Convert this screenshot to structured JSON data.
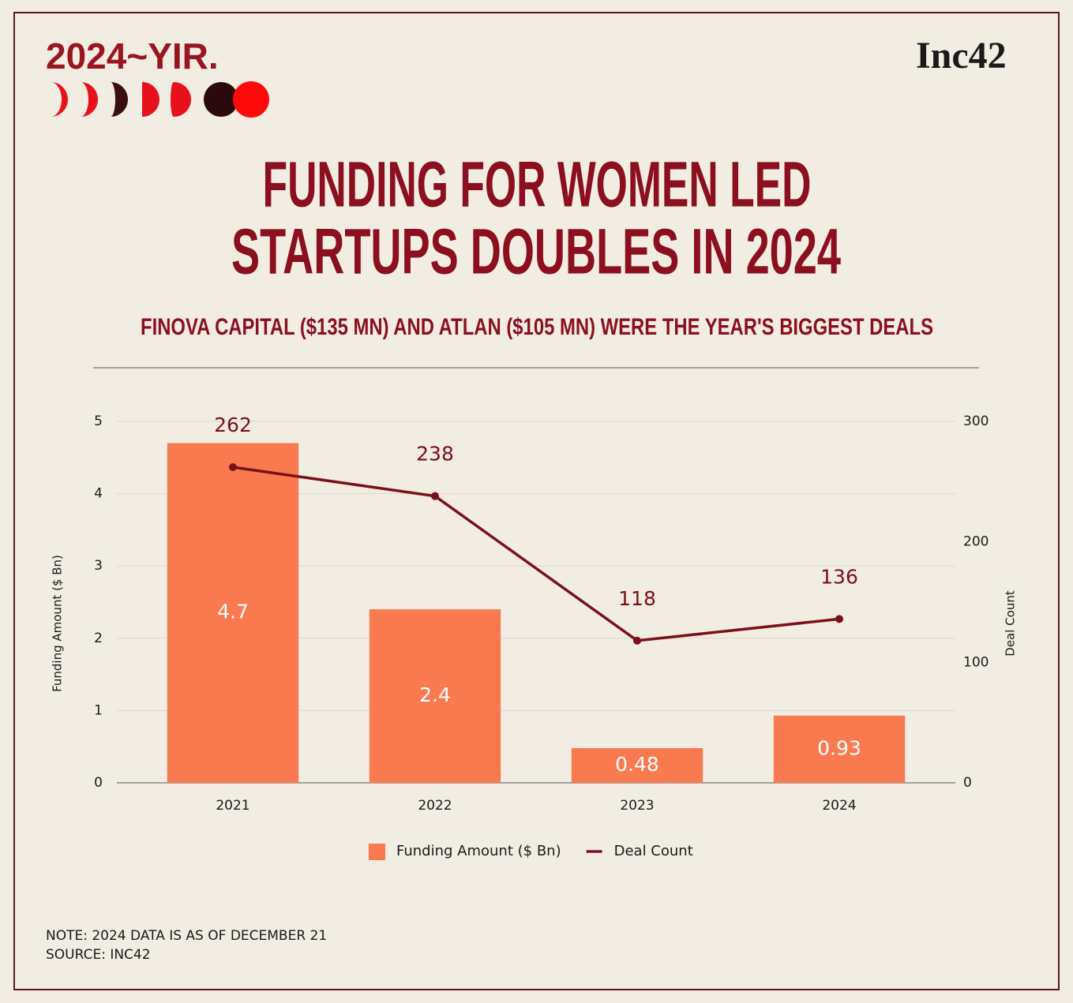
{
  "header": {
    "badge": "2024~YIR.",
    "brand": "Inc42"
  },
  "chart_data": {
    "type": "bar",
    "title": [
      "FUNDING FOR WOMEN LED",
      "STARTUPS DOUBLES IN 2024"
    ],
    "subtitle": "FINOVA CAPITAL ($135 MN) AND ATLAN ($105 MN) WERE THE YEAR'S BIGGEST DEALS",
    "categories": [
      "2021",
      "2022",
      "2023",
      "2024"
    ],
    "series": [
      {
        "name": "Funding Amount ($ Bn)",
        "type": "bar",
        "color": "#f97a4f",
        "values": [
          4.7,
          2.4,
          0.48,
          0.93
        ]
      },
      {
        "name": "Deal Count",
        "type": "line",
        "axis": "y2",
        "color": "#7a1019",
        "values": [
          262,
          238,
          118,
          136
        ]
      }
    ],
    "ylabel": "Funding Amount ($ Bn)",
    "y2label": "Deal Count",
    "ylim": [
      0,
      5
    ],
    "yticks": [
      0,
      1,
      2,
      3,
      4,
      5
    ],
    "y2lim": [
      0,
      300
    ],
    "y2ticks": [
      0,
      100,
      200,
      300
    ],
    "grid": true,
    "legend": "bottom"
  },
  "footer": {
    "note": "NOTE: 2024 DATA IS AS OF DECEMBER 21",
    "source": "SOURCE: INC42"
  }
}
